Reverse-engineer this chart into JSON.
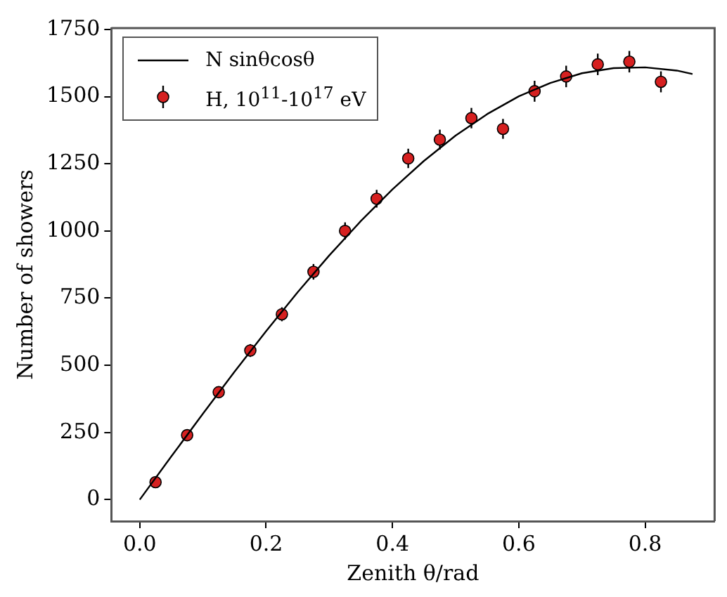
{
  "chart_data": {
    "type": "scatter",
    "xlabel": "Zenith θ/rad",
    "ylabel": "Number of showers",
    "xlim": [
      -0.045,
      0.91
    ],
    "ylim": [
      -80,
      1755
    ],
    "xticks": [
      {
        "value": 0,
        "label": "0.0"
      },
      0.2,
      0.4,
      0.6,
      0.8
    ],
    "yticks": [
      0,
      250,
      500,
      750,
      1000,
      1250,
      1500,
      1750
    ],
    "grid": false,
    "legend": "top left",
    "series": [
      {
        "name": "N sinθcosθ",
        "type": "line",
        "color": "#000000",
        "marker": "none",
        "line_style": "solid",
        "x": [
          0,
          0.05,
          0.1,
          0.15,
          0.2,
          0.25,
          0.3,
          0.35,
          0.4,
          0.45,
          0.5,
          0.55,
          0.6,
          0.65,
          0.7,
          0.75,
          0.8,
          0.85,
          0.875
        ],
        "values": [
          0,
          161,
          320,
          476,
          627,
          772,
          909,
          1037,
          1155,
          1261,
          1355,
          1435,
          1501,
          1551,
          1587,
          1606,
          1609,
          1597,
          1584
        ]
      },
      {
        "name": "H, 10$^{11}$-10$^{17}$ eV",
        "type": "scatter",
        "color": "#d62020",
        "marker": "circle",
        "x": [
          0.025,
          0.075,
          0.125,
          0.175,
          0.225,
          0.275,
          0.325,
          0.375,
          0.425,
          0.475,
          0.525,
          0.575,
          0.625,
          0.675,
          0.725,
          0.775,
          0.825
        ],
        "values": [
          65,
          240,
          400,
          555,
          690,
          848,
          1000,
          1120,
          1270,
          1340,
          1420,
          1380,
          1520,
          1575,
          1620,
          1630,
          1555
        ],
        "errors": [
          8,
          15,
          20,
          24,
          26,
          29,
          32,
          33,
          36,
          37,
          38,
          37,
          39,
          40,
          40,
          40,
          39
        ]
      }
    ]
  }
}
